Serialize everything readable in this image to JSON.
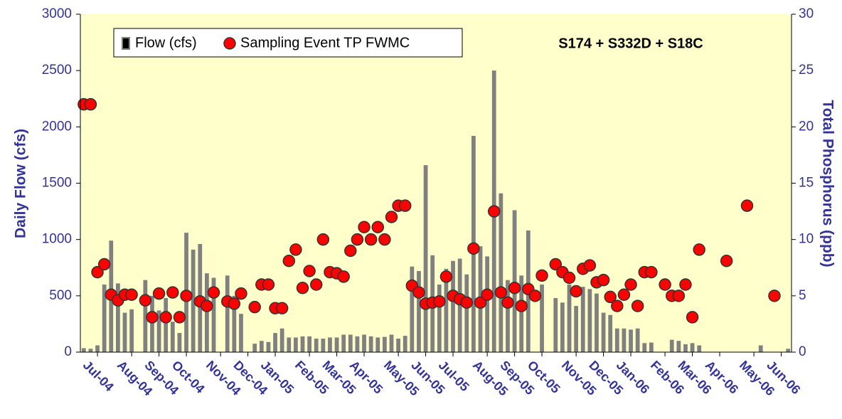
{
  "chart_data": {
    "type": "bar",
    "annotation": "S174 + S332D + S18C",
    "y_label": "Daily Flow (cfs)",
    "y2_label": "Total Phosphorus (ppb)",
    "categories": [
      null,
      null,
      "Jul-04",
      null,
      null,
      null,
      null,
      "Aug-04",
      null,
      null,
      null,
      "Sep-04",
      null,
      null,
      null,
      "Oct-04",
      null,
      null,
      null,
      null,
      "Nov-04",
      null,
      null,
      null,
      "Dec-04",
      null,
      null,
      null,
      "Jan-05",
      null,
      null,
      null,
      null,
      "Feb-05",
      null,
      null,
      null,
      "Mar-05",
      null,
      null,
      null,
      "Apr-05",
      null,
      null,
      null,
      null,
      "May-05",
      null,
      null,
      null,
      "Jun-05",
      null,
      null,
      null,
      "Jul-05",
      null,
      null,
      null,
      null,
      "Aug-05",
      null,
      null,
      null,
      "Sep-05",
      null,
      null,
      null,
      "Oct-05",
      null,
      null,
      null,
      null,
      "Nov-05",
      null,
      null,
      null,
      "Dec-05",
      null,
      null,
      null,
      "Jan-06",
      null,
      null,
      null,
      null,
      "Feb-06",
      null,
      null,
      null,
      "Mar-06",
      null,
      null,
      null,
      "Apr-06",
      null,
      null,
      null,
      null,
      "May-06",
      null,
      null,
      null,
      "Jun-06",
      null
    ],
    "series": [
      {
        "name": "Flow (cfs)",
        "type": "bar",
        "color": "#808080",
        "values": [
          35,
          30,
          60,
          600,
          990,
          610,
          350,
          380,
          null,
          640,
          500,
          370,
          480,
          270,
          170,
          1060,
          910,
          960,
          700,
          660,
          null,
          680,
          500,
          340,
          null,
          75,
          100,
          90,
          170,
          210,
          130,
          130,
          140,
          140,
          120,
          120,
          130,
          130,
          155,
          155,
          140,
          155,
          140,
          130,
          135,
          155,
          120,
          145,
          760,
          720,
          1660,
          860,
          600,
          740,
          810,
          830,
          690,
          1920,
          940,
          850,
          2500,
          1410,
          640,
          1260,
          680,
          1080,
          null,
          600,
          null,
          480,
          440,
          600,
          410,
          580,
          560,
          520,
          350,
          330,
          210,
          210,
          200,
          210,
          80,
          85,
          null,
          null,
          110,
          100,
          70,
          80,
          60,
          null,
          null,
          null,
          null,
          null,
          null,
          null,
          null,
          60,
          null,
          null,
          null,
          30
        ]
      },
      {
        "name": "Sampling Event TP FWMC",
        "type": "scatter",
        "axis": "y2",
        "color": "#ff0000",
        "values": [
          22,
          22,
          7.1,
          7.8,
          5.1,
          4.6,
          5.1,
          5.1,
          null,
          4.6,
          3.1,
          5.2,
          3.1,
          5.3,
          3.1,
          5.0,
          null,
          4.5,
          4.1,
          5.3,
          null,
          4.5,
          4.3,
          5.2,
          null,
          4.0,
          6.0,
          6.0,
          3.9,
          3.9,
          8.1,
          9.1,
          5.7,
          7.2,
          6.0,
          10.0,
          7.1,
          7.0,
          6.7,
          9.0,
          10.0,
          11.1,
          10.0,
          11.1,
          10.0,
          12.0,
          13.0,
          13.0,
          5.9,
          5.3,
          4.3,
          4.4,
          4.5,
          6.7,
          5.0,
          4.7,
          4.4,
          9.2,
          4.4,
          5.1,
          12.5,
          5.3,
          4.4,
          5.7,
          4.1,
          5.6,
          5.0,
          6.8,
          null,
          7.8,
          7.1,
          6.6,
          5.4,
          7.4,
          7.7,
          6.2,
          6.4,
          4.9,
          4.1,
          5.1,
          6.0,
          4.1,
          7.1,
          7.1,
          null,
          6.0,
          5.0,
          5.0,
          6.0,
          3.1,
          9.1,
          null,
          null,
          null,
          8.1,
          null,
          null,
          13.0,
          null,
          null,
          null,
          5.0,
          null,
          null
        ]
      }
    ],
    "ylim": [
      0,
      3000
    ],
    "yticks": [
      0,
      500,
      1000,
      1500,
      2000,
      2500,
      3000
    ],
    "y2lim": [
      0,
      30
    ],
    "y2ticks": [
      0,
      5,
      10,
      15,
      20,
      25,
      30
    ],
    "background": "#ffffcc",
    "axis_color": "#333399"
  }
}
